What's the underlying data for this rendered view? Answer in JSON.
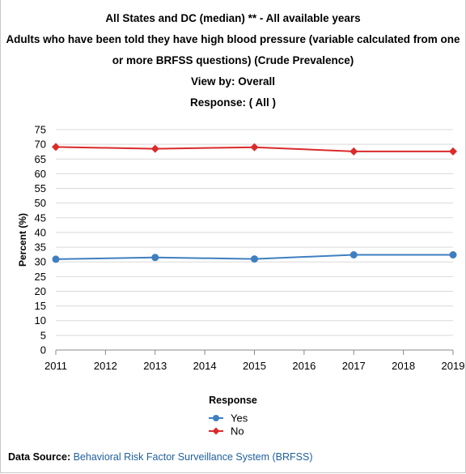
{
  "titles": {
    "line1": "All States and DC (median) ** - All available years",
    "line2": "Adults who have been told they have high blood pressure (variable calculated from one",
    "line3": "or more BRFSS questions) (Crude Prevalence)",
    "line4": "View by: Overall",
    "line5": "Response: ( All )"
  },
  "source": {
    "label": "Data Source:",
    "link_text": "Behavioral Risk Factor Surveillance System (BRFSS)"
  },
  "colors": {
    "yes": "#3f7fbf",
    "no": "#d92b2b",
    "grid": "#d9d9d9",
    "axis": "#888888"
  },
  "chart_data": {
    "type": "line",
    "title": "All States and DC (median) ** - All available years",
    "xlabel": "",
    "ylabel": "Percent (%)",
    "x": [
      2011,
      2012,
      2013,
      2014,
      2015,
      2016,
      2017,
      2018,
      2019
    ],
    "ylim": [
      0,
      75
    ],
    "yticks": [
      0,
      5,
      10,
      15,
      20,
      25,
      30,
      35,
      40,
      45,
      50,
      55,
      60,
      65,
      70,
      75
    ],
    "grid": true,
    "legend_title": "Response",
    "legend_placement": "bottom",
    "series": [
      {
        "name": "Yes",
        "color": "#3f7fbf",
        "marker": "circle",
        "x": [
          2011,
          2013,
          2015,
          2017,
          2019
        ],
        "values": [
          30.9,
          31.5,
          31.0,
          32.4,
          32.4
        ]
      },
      {
        "name": "No",
        "color": "#d92b2b",
        "marker": "diamond",
        "x": [
          2011,
          2013,
          2015,
          2017,
          2019
        ],
        "values": [
          69.1,
          68.5,
          69.0,
          67.6,
          67.6
        ]
      }
    ]
  }
}
